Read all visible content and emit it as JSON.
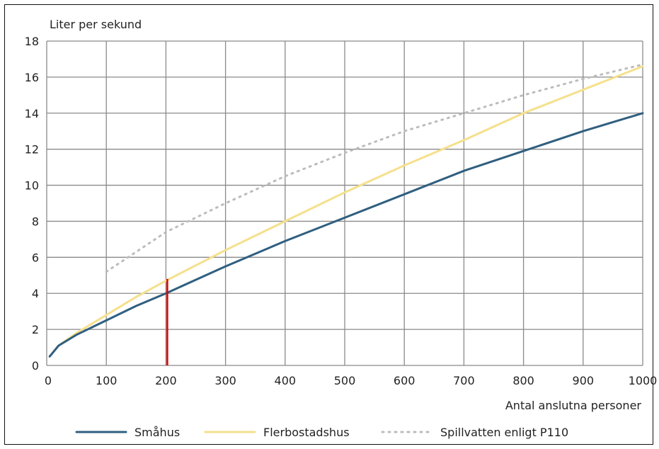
{
  "chart_data": {
    "type": "line",
    "title": "",
    "ylabel": "Liter per sekund",
    "xlabel": "Antal anslutna personer",
    "xlim": [
      0,
      1000
    ],
    "ylim": [
      0,
      18
    ],
    "xticks": [
      0,
      100,
      200,
      300,
      400,
      500,
      600,
      700,
      800,
      900,
      1000
    ],
    "yticks": [
      0,
      2,
      4,
      6,
      8,
      10,
      12,
      14,
      16,
      18
    ],
    "grid": true,
    "legend_position": "bottom",
    "series": [
      {
        "name": "Småhus",
        "color": "#2f5f80",
        "style": "solid",
        "x": [
          5,
          20,
          50,
          100,
          150,
          200,
          300,
          400,
          500,
          600,
          700,
          800,
          900,
          1000
        ],
        "y": [
          0.5,
          1.1,
          1.7,
          2.5,
          3.3,
          4.0,
          5.5,
          6.9,
          8.2,
          9.5,
          10.8,
          11.9,
          13.0,
          14.0
        ]
      },
      {
        "name": "Flerbostadshus",
        "color": "#f5e08c",
        "style": "solid",
        "x": [
          5,
          20,
          50,
          100,
          150,
          200,
          300,
          400,
          500,
          600,
          700,
          800,
          900,
          1000
        ],
        "y": [
          0.5,
          1.1,
          1.8,
          2.8,
          3.8,
          4.7,
          6.4,
          8.0,
          9.6,
          11.1,
          12.5,
          14.0,
          15.3,
          16.6
        ]
      },
      {
        "name": "Spillvatten enligt P110",
        "color": "#bcbcbc",
        "style": "dotted",
        "x": [
          100,
          200,
          300,
          400,
          500,
          600,
          700,
          800,
          900,
          1000
        ],
        "y": [
          5.2,
          7.4,
          9.0,
          10.5,
          11.8,
          13.0,
          14.0,
          15.0,
          15.9,
          16.7
        ]
      }
    ],
    "annotations": [
      {
        "type": "vertical-line",
        "color": "#e00000",
        "x": 200,
        "y_from": 0,
        "y_to": 4.8
      }
    ]
  }
}
